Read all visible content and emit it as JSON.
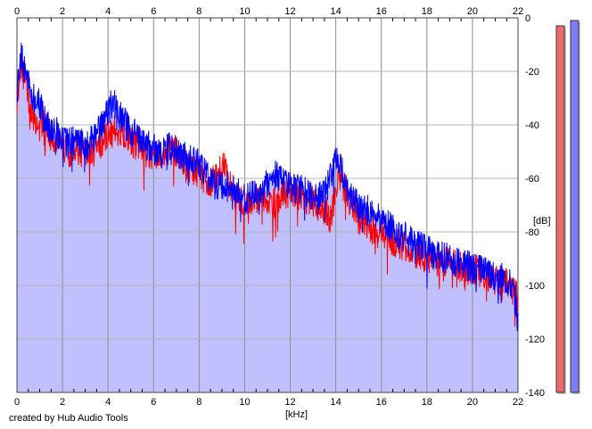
{
  "credit": "created by Hub Audio Tools",
  "chart_data": {
    "type": "area",
    "title": "",
    "xlabel": "[kHz]",
    "ylabel": "[dB]",
    "xlim": [
      0,
      22
    ],
    "ylim": [
      -140,
      0
    ],
    "xticks": [
      0,
      2,
      4,
      6,
      8,
      10,
      12,
      14,
      16,
      18,
      20,
      22
    ],
    "yticks": [
      0,
      -20,
      -40,
      -60,
      -80,
      -100,
      -120,
      -140
    ],
    "ytick_labels": [
      "0",
      "-20",
      "-40",
      "-60",
      "-80",
      "-100",
      "-120",
      "-140"
    ],
    "grid": true,
    "x": [
      0,
      0.1,
      0.2,
      0.3,
      0.4,
      0.6,
      0.8,
      1.0,
      1.2,
      1.5,
      1.8,
      2.0,
      2.3,
      2.6,
      3.0,
      3.4,
      3.8,
      4.0,
      4.2,
      4.4,
      4.6,
      4.8,
      5.0,
      5.3,
      5.6,
      6.0,
      6.4,
      6.8,
      7.2,
      7.6,
      8.0,
      8.4,
      8.8,
      9.0,
      9.2,
      9.4,
      9.6,
      10.0,
      10.4,
      10.8,
      11.0,
      11.2,
      11.6,
      12.0,
      12.4,
      12.8,
      13.2,
      13.6,
      13.8,
      14.0,
      14.2,
      14.4,
      14.6,
      15.0,
      15.4,
      15.8,
      16.2,
      16.6,
      17.0,
      17.4,
      17.8,
      18.2,
      18.6,
      19.0,
      19.4,
      19.8,
      20.2,
      20.6,
      21.0,
      21.4,
      21.7,
      21.9,
      22.0
    ],
    "series": [
      {
        "color": "#ff0000",
        "values": [
          -33,
          -22,
          -18,
          -21,
          -24,
          -34,
          -38,
          -36,
          -41,
          -44,
          -45,
          -49,
          -50,
          -49,
          -51,
          -50,
          -45,
          -44,
          -41,
          -42,
          -43,
          -44,
          -46,
          -48,
          -50,
          -51,
          -51,
          -48,
          -52,
          -56,
          -58,
          -62,
          -60,
          -54,
          -58,
          -64,
          -66,
          -70,
          -68,
          -67,
          -68,
          -70,
          -66,
          -65,
          -66,
          -68,
          -70,
          -72,
          -76,
          -62,
          -60,
          -64,
          -68,
          -75,
          -78,
          -80,
          -82,
          -84,
          -85,
          -88,
          -89,
          -90,
          -91,
          -91,
          -93,
          -94,
          -94,
          -96,
          -98,
          -99,
          -100,
          -102,
          -108
        ]
      },
      {
        "color": "#0000ff",
        "values": [
          -30,
          -20,
          -14,
          -18,
          -20,
          -28,
          -30,
          -32,
          -38,
          -41,
          -43,
          -46,
          -47,
          -45,
          -48,
          -45,
          -40,
          -35,
          -31,
          -34,
          -38,
          -40,
          -42,
          -45,
          -47,
          -49,
          -50,
          -48,
          -51,
          -53,
          -55,
          -60,
          -63,
          -62,
          -63,
          -64,
          -65,
          -68,
          -66,
          -64,
          -62,
          -58,
          -60,
          -63,
          -64,
          -66,
          -68,
          -64,
          -58,
          -53,
          -55,
          -62,
          -66,
          -70,
          -72,
          -75,
          -77,
          -80,
          -82,
          -84,
          -86,
          -88,
          -89,
          -90,
          -92,
          -93,
          -94,
          -95,
          -96,
          -98,
          -100,
          -106,
          -116
        ]
      }
    ],
    "fill_color": "#c0c0ff",
    "level_meters": [
      {
        "color": "#ef6b6b",
        "level_db": -3
      },
      {
        "color": "#7e7ef2",
        "level_db": -1
      }
    ]
  }
}
